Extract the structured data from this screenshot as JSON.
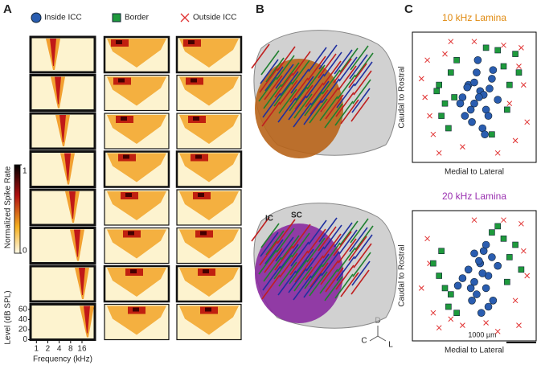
{
  "panels": {
    "a": "A",
    "b": "B",
    "c": "C"
  },
  "legend": [
    {
      "label": "Inside ICC",
      "color": "#2a5db0"
    },
    {
      "label": "Border",
      "color": "#1e9a3c"
    },
    {
      "label": "Outside ICC",
      "color": "#e03030"
    }
  ],
  "colorbar": {
    "title": "Normalized Spike Rate",
    "ticks": [
      0,
      1
    ]
  },
  "level_axis": {
    "title": "Level (dB SPL)",
    "ticks": [
      0,
      20,
      40,
      60
    ],
    "ylim": [
      0,
      70
    ]
  },
  "frequency_axis": {
    "title": "Frequency (kHz)",
    "ticks": [
      1,
      2,
      4,
      8,
      16
    ],
    "xlim": [
      0.7,
      35
    ]
  },
  "brain": {
    "labels": [
      "IC",
      "SC"
    ],
    "compass": [
      "D",
      "C",
      "L"
    ]
  },
  "scatter": [
    {
      "title": "10 kHz Lamina",
      "title_color": "#e08a10",
      "x_label": "Medial to Lateral",
      "y_label": "Caudal to Rostral",
      "series": [
        {
          "x": [
            40,
            45,
            50,
            55,
            60,
            65,
            48,
            52,
            58,
            62,
            44,
            70,
            53,
            57,
            47,
            63,
            50,
            66,
            38,
            59,
            54,
            42
          ],
          "y": [
            50,
            60,
            45,
            55,
            40,
            65,
            30,
            70,
            52,
            35,
            58,
            48,
            80,
            25,
            40,
            57,
            62,
            72,
            45,
            20,
            50,
            35
          ]
        },
        {
          "x": [
            20,
            25,
            30,
            22,
            35,
            75,
            80,
            85,
            70,
            78,
            60,
            28,
            18,
            88,
            65,
            33
          ],
          "y": [
            60,
            45,
            70,
            35,
            80,
            75,
            60,
            85,
            88,
            40,
            90,
            25,
            55,
            70,
            20,
            50
          ]
        },
        {
          "x": [
            10,
            15,
            8,
            90,
            95,
            92,
            85,
            30,
            40,
            75,
            20,
            88,
            5,
            12,
            70,
            50,
            25,
            80
          ],
          "y": [
            80,
            20,
            50,
            90,
            30,
            60,
            15,
            95,
            10,
            92,
            5,
            75,
            65,
            35,
            5,
            95,
            85,
            45
          ]
        }
      ]
    },
    {
      "title": "20 kHz Lamina",
      "title_color": "#9a30b0",
      "x_label": "Medial to Lateral",
      "y_label": "Caudal to Rostral",
      "series": [
        {
          "x": [
            45,
            50,
            55,
            60,
            65,
            52,
            58,
            62,
            48,
            70,
            56,
            40,
            66,
            54,
            60,
            50,
            36,
            62,
            57,
            47
          ],
          "y": [
            55,
            45,
            60,
            40,
            65,
            35,
            70,
            50,
            30,
            58,
            20,
            48,
            30,
            62,
            75,
            68,
            42,
            25,
            52,
            40
          ]
        },
        {
          "x": [
            20,
            25,
            30,
            15,
            75,
            80,
            85,
            70,
            90,
            28,
            22,
            65,
            78,
            35
          ],
          "y": [
            50,
            40,
            35,
            60,
            80,
            65,
            75,
            90,
            55,
            25,
            70,
            85,
            45,
            20
          ]
        },
        {
          "x": [
            10,
            15,
            5,
            90,
            95,
            85,
            30,
            40,
            75,
            20,
            88,
            12,
            70,
            50,
            60,
            92
          ],
          "y": [
            80,
            20,
            40,
            92,
            50,
            30,
            15,
            10,
            95,
            8,
            10,
            60,
            5,
            95,
            12,
            70
          ]
        }
      ]
    }
  ],
  "scale_bar": "1000 µm"
}
